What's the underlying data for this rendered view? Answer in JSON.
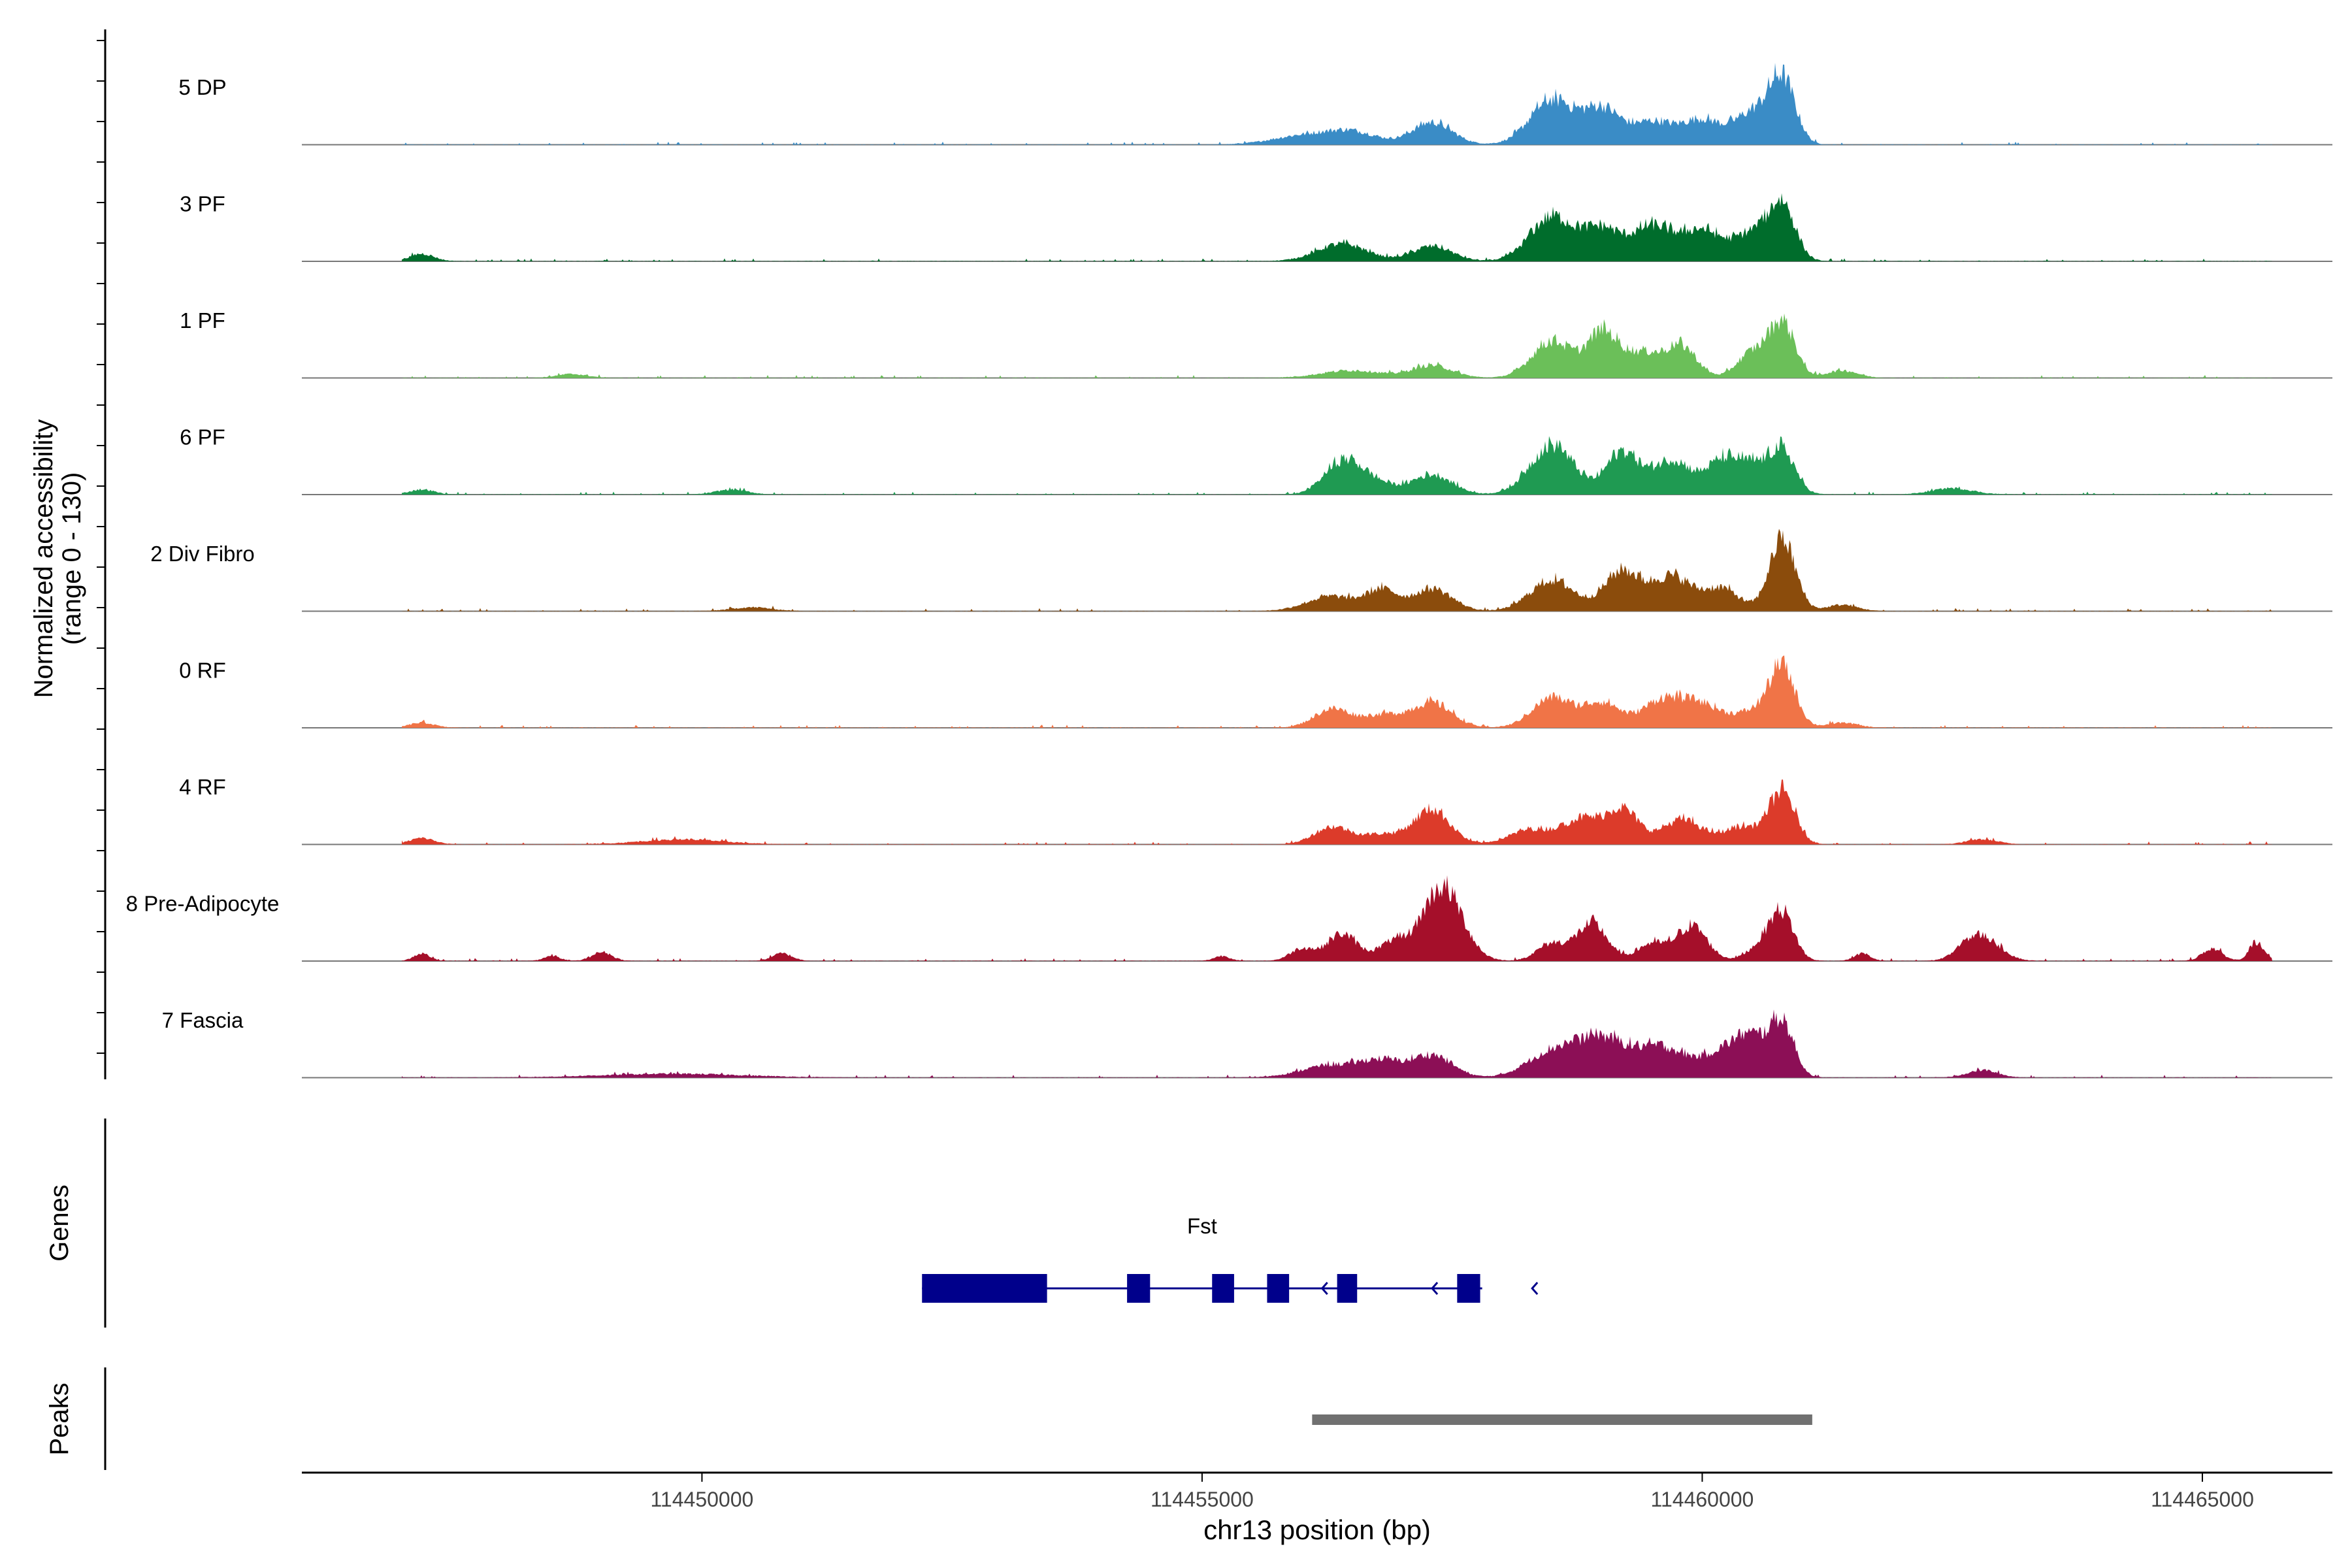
{
  "chart_data": {
    "type": "area",
    "title": "",
    "region": "chr13",
    "xlabel": "chr13 position (bp)",
    "ylabel_line1": "Normalized accessibility",
    "ylabel_line2": "(range 0 - 130)",
    "yrange": [
      0,
      130
    ],
    "xlim": [
      114446000,
      114466300
    ],
    "xticks": [
      114450000,
      114455000,
      114460000,
      114465000
    ],
    "xtick_labels": [
      "114450000",
      "114455000",
      "114460000",
      "114465000"
    ],
    "data_start": 114447000,
    "data_end": 114465700,
    "tracks": [
      {
        "name": "5 DP",
        "color": "#3a8cc6",
        "peaks": [
          [
            114456000,
            7,
            300
          ],
          [
            114456500,
            10,
            250
          ],
          [
            114457300,
            18,
            200
          ],
          [
            114458500,
            36,
            220
          ],
          [
            114459000,
            28,
            180
          ],
          [
            114459500,
            18,
            200
          ],
          [
            114460000,
            20,
            200
          ],
          [
            114460500,
            25,
            170
          ],
          [
            114460800,
            52,
            130
          ]
        ]
      },
      {
        "name": "3 PF",
        "color": "#006d2c",
        "peaks": [
          [
            114447200,
            6,
            120
          ],
          [
            114456400,
            14,
            250
          ],
          [
            114457300,
            12,
            200
          ],
          [
            114458500,
            36,
            220
          ],
          [
            114459000,
            25,
            180
          ],
          [
            114459500,
            28,
            200
          ],
          [
            114460000,
            25,
            200
          ],
          [
            114460500,
            22,
            170
          ],
          [
            114460800,
            45,
            130
          ]
        ]
      },
      {
        "name": "1 PF",
        "color": "#6bbf59",
        "peaks": [
          [
            114448700,
            3,
            150
          ],
          [
            114456500,
            6,
            300
          ],
          [
            114457300,
            10,
            200
          ],
          [
            114458500,
            30,
            200
          ],
          [
            114459000,
            35,
            150
          ],
          [
            114459400,
            20,
            200
          ],
          [
            114459800,
            24,
            150
          ],
          [
            114460500,
            20,
            150
          ],
          [
            114460800,
            44,
            130
          ],
          [
            114461400,
            6,
            150
          ]
        ]
      },
      {
        "name": "6 PF",
        "color": "#1f9a52",
        "peaks": [
          [
            114447200,
            4,
            120
          ],
          [
            114450300,
            4,
            150
          ],
          [
            114456400,
            25,
            180
          ],
          [
            114456700,
            10,
            200
          ],
          [
            114457300,
            16,
            200
          ],
          [
            114458500,
            40,
            220
          ],
          [
            114459200,
            34,
            160
          ],
          [
            114459700,
            28,
            200
          ],
          [
            114460200,
            26,
            150
          ],
          [
            114460500,
            22,
            150
          ],
          [
            114460800,
            35,
            130
          ],
          [
            114462500,
            5,
            200
          ]
        ]
      },
      {
        "name": "2 Div Fibro",
        "color": "#8b4c0c",
        "peaks": [
          [
            114450500,
            3,
            200
          ],
          [
            114456300,
            12,
            250
          ],
          [
            114456800,
            16,
            150
          ],
          [
            114457300,
            18,
            200
          ],
          [
            114458500,
            25,
            220
          ],
          [
            114459200,
            32,
            180
          ],
          [
            114459700,
            28,
            200
          ],
          [
            114460200,
            18,
            170
          ],
          [
            114460800,
            58,
            130
          ],
          [
            114461400,
            5,
            150
          ]
        ]
      },
      {
        "name": "0 RF",
        "color": "#f07447",
        "peaks": [
          [
            114447200,
            4,
            120
          ],
          [
            114456300,
            15,
            180
          ],
          [
            114456800,
            10,
            200
          ],
          [
            114457300,
            20,
            200
          ],
          [
            114458500,
            24,
            200
          ],
          [
            114459000,
            20,
            180
          ],
          [
            114459600,
            22,
            200
          ],
          [
            114460000,
            18,
            200
          ],
          [
            114460500,
            12,
            170
          ],
          [
            114460800,
            48,
            130
          ],
          [
            114461400,
            4,
            150
          ]
        ]
      },
      {
        "name": "4 RF",
        "color": "#dc3b2a",
        "peaks": [
          [
            114447200,
            5,
            120
          ],
          [
            114449800,
            4,
            400
          ],
          [
            114456300,
            14,
            180
          ],
          [
            114456800,
            8,
            200
          ],
          [
            114457300,
            28,
            180
          ],
          [
            114458300,
            12,
            220
          ],
          [
            114458800,
            20,
            180
          ],
          [
            114459200,
            28,
            160
          ],
          [
            114459800,
            20,
            200
          ],
          [
            114460400,
            14,
            180
          ],
          [
            114460800,
            42,
            130
          ],
          [
            114462800,
            4,
            150
          ]
        ]
      },
      {
        "name": "8 Pre-Adipocyte",
        "color": "#a50f2a",
        "peaks": [
          [
            114447200,
            6,
            80
          ],
          [
            114448500,
            4,
            80
          ],
          [
            114449000,
            7,
            100
          ],
          [
            114450800,
            6,
            100
          ],
          [
            114455200,
            4,
            80
          ],
          [
            114456000,
            10,
            120
          ],
          [
            114456400,
            22,
            150
          ],
          [
            114456900,
            14,
            150
          ],
          [
            114457400,
            60,
            200
          ],
          [
            114458500,
            14,
            150
          ],
          [
            114458900,
            30,
            150
          ],
          [
            114459500,
            14,
            150
          ],
          [
            114459900,
            28,
            150
          ],
          [
            114460600,
            12,
            150
          ],
          [
            114460800,
            36,
            120
          ],
          [
            114461600,
            6,
            80
          ],
          [
            114462700,
            16,
            150
          ],
          [
            114462900,
            10,
            150
          ],
          [
            114465100,
            10,
            100
          ],
          [
            114465550,
            14,
            80
          ]
        ]
      },
      {
        "name": "7 Fascia",
        "color": "#8c0f56",
        "peaks": [
          [
            114449700,
            3,
            700
          ],
          [
            114456300,
            10,
            300
          ],
          [
            114456800,
            12,
            200
          ],
          [
            114457300,
            18,
            200
          ],
          [
            114458500,
            20,
            250
          ],
          [
            114459000,
            30,
            250
          ],
          [
            114459600,
            24,
            250
          ],
          [
            114460200,
            18,
            200
          ],
          [
            114460500,
            28,
            170
          ],
          [
            114460800,
            42,
            120
          ],
          [
            114462800,
            6,
            150
          ]
        ]
      }
    ],
    "genes_label": "Genes",
    "gene": {
      "name": "Fst",
      "color": "#00008b",
      "start": 114452200,
      "end": 114457800,
      "strand": "-",
      "exons": [
        [
          114452200,
          114453450
        ],
        [
          114454250,
          114454480
        ],
        [
          114455100,
          114455320
        ],
        [
          114455650,
          114455870
        ],
        [
          114456350,
          114456550
        ],
        [
          114457550,
          114457780
        ]
      ],
      "arrows": [
        114456200,
        114457300,
        114458300
      ]
    },
    "peaks_label": "Peaks",
    "peak_regions": [
      {
        "start": 114456100,
        "end": 114461100,
        "color": "#707070"
      }
    ]
  }
}
